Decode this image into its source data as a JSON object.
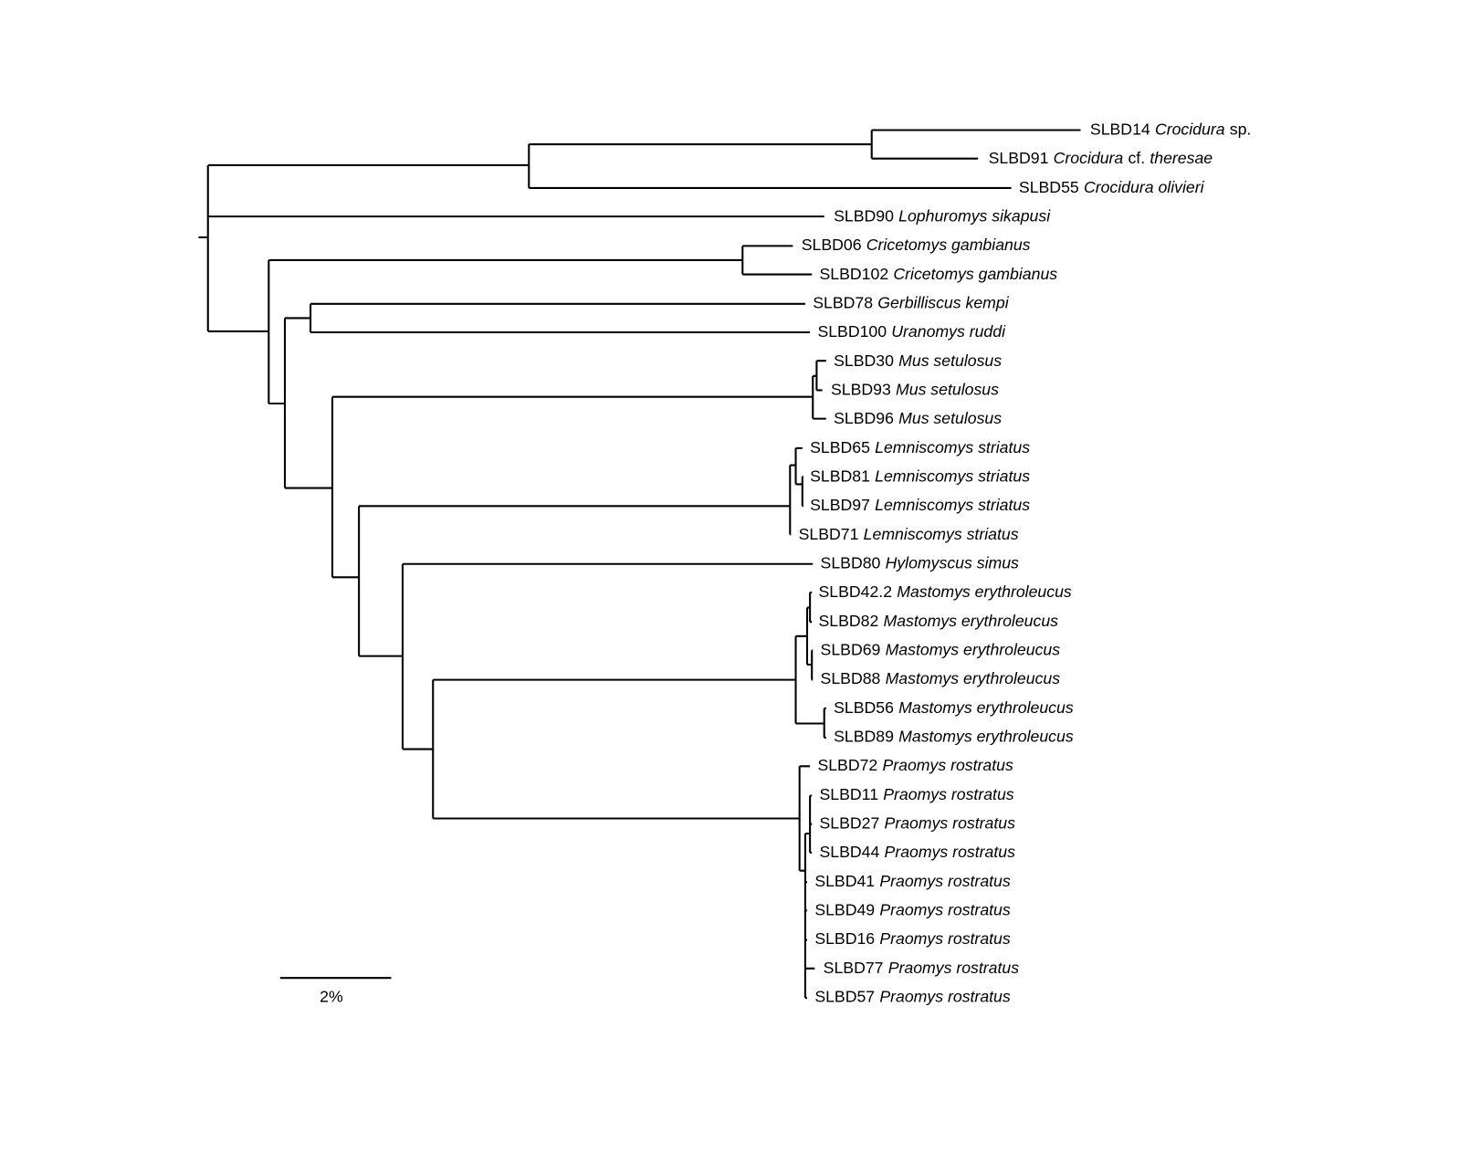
{
  "tree": {
    "leaves": [
      [
        {
          "text": "SLBD14"
        },
        {
          "text": "Crocidura",
          "italic": true
        },
        {
          "text": "sp."
        }
      ],
      [
        {
          "text": "SLBD91"
        },
        {
          "text": "Crocidura",
          "italic": true
        },
        {
          "text": "cf."
        },
        {
          "text": "theresae",
          "italic": true
        }
      ],
      [
        {
          "text": "SLBD55"
        },
        {
          "text": "Crocidura olivieri",
          "italic": true
        }
      ],
      [
        {
          "text": "SLBD90"
        },
        {
          "text": "Lophuromys sikapusi",
          "italic": true
        }
      ],
      [
        {
          "text": "SLBD06"
        },
        {
          "text": "Cricetomys gambianus",
          "italic": true
        }
      ],
      [
        {
          "text": "SLBD102"
        },
        {
          "text": "Cricetomys gambianus",
          "italic": true
        }
      ],
      [
        {
          "text": "SLBD78"
        },
        {
          "text": "Gerbilliscus kempi",
          "italic": true
        }
      ],
      [
        {
          "text": "SLBD100"
        },
        {
          "text": "Uranomys ruddi",
          "italic": true
        }
      ],
      [
        {
          "text": "SLBD30"
        },
        {
          "text": "Mus setulosus",
          "italic": true
        }
      ],
      [
        {
          "text": "SLBD93"
        },
        {
          "text": "Mus setulosus",
          "italic": true
        }
      ],
      [
        {
          "text": "SLBD96"
        },
        {
          "text": "Mus setulosus",
          "italic": true
        }
      ],
      [
        {
          "text": "SLBD65"
        },
        {
          "text": "Lemniscomys striatus",
          "italic": true
        }
      ],
      [
        {
          "text": "SLBD81"
        },
        {
          "text": "Lemniscomys striatus",
          "italic": true
        }
      ],
      [
        {
          "text": "SLBD97"
        },
        {
          "text": "Lemniscomys striatus",
          "italic": true
        }
      ],
      [
        {
          "text": "SLBD71"
        },
        {
          "text": "Lemniscomys striatus",
          "italic": true
        }
      ],
      [
        {
          "text": "SLBD80"
        },
        {
          "text": "Hylomyscus simus",
          "italic": true
        }
      ],
      [
        {
          "text": "SLBD42.2"
        },
        {
          "text": "Mastomys erythroleucus",
          "italic": true
        }
      ],
      [
        {
          "text": "SLBD82"
        },
        {
          "text": "Mastomys erythroleucus",
          "italic": true
        }
      ],
      [
        {
          "text": "SLBD69"
        },
        {
          "text": "Mastomys erythroleucus",
          "italic": true
        }
      ],
      [
        {
          "text": "SLBD88"
        },
        {
          "text": "Mastomys erythroleucus",
          "italic": true
        }
      ],
      [
        {
          "text": "SLBD56"
        },
        {
          "text": "Mastomys erythroleucus",
          "italic": true
        }
      ],
      [
        {
          "text": "SLBD89"
        },
        {
          "text": "Mastomys erythroleucus",
          "italic": true
        }
      ],
      [
        {
          "text": "SLBD72"
        },
        {
          "text": "Praomys rostratus",
          "italic": true
        }
      ],
      [
        {
          "text": "SLBD11"
        },
        {
          "text": "Praomys rostratus",
          "italic": true
        }
      ],
      [
        {
          "text": "SLBD27"
        },
        {
          "text": "Praomys rostratus",
          "italic": true
        }
      ],
      [
        {
          "text": "SLBD44"
        },
        {
          "text": "Praomys rostratus",
          "italic": true
        }
      ],
      [
        {
          "text": "SLBD41"
        },
        {
          "text": "Praomys rostratus",
          "italic": true
        }
      ],
      [
        {
          "text": "SLBD49"
        },
        {
          "text": "Praomys rostratus",
          "italic": true
        }
      ],
      [
        {
          "text": "SLBD16"
        },
        {
          "text": "Praomys rostratus",
          "italic": true
        }
      ],
      [
        {
          "text": "SLBD77"
        },
        {
          "text": "Praomys rostratus",
          "italic": true
        }
      ],
      [
        {
          "text": "SLBD57"
        },
        {
          "text": "Praomys rostratus",
          "italic": true
        }
      ]
    ],
    "scale_bar": {
      "label": "2%"
    }
  }
}
